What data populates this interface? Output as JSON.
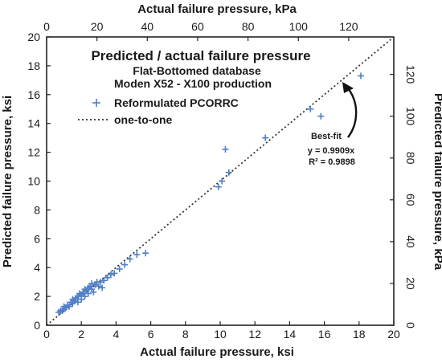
{
  "chart_data": {
    "type": "scatter",
    "title": "Predicted / actual failure pressure",
    "subtitle_lines": [
      "Flat-Bottomed database",
      "Moden X52 - X100 production"
    ],
    "xlabel": "Actual failure pressure, ksi",
    "ylabel": "Predicted failure pressure, ksi",
    "xlabel_top": "Actual failure pressure, kPa",
    "ylabel_right": "Predicted failure pressure, kPa",
    "xlim": [
      0,
      20
    ],
    "ylim": [
      0,
      20
    ],
    "xlim_top": [
      0,
      137.9
    ],
    "ylim_right": [
      0,
      137.9
    ],
    "x_ticks": [
      "0",
      "2",
      "4",
      "6",
      "8",
      "10",
      "12",
      "14",
      "16",
      "18",
      "20"
    ],
    "y_ticks": [
      "0",
      "2",
      "4",
      "6",
      "8",
      "10",
      "12",
      "14",
      "16",
      "18",
      "20"
    ],
    "x_ticks_top": [
      "0",
      "20",
      "40",
      "60",
      "80",
      "100",
      "120"
    ],
    "y_ticks_right": [
      "0",
      "20",
      "40",
      "60",
      "80",
      "100",
      "120"
    ],
    "grid": false,
    "legend_position": "top-left",
    "series": [
      {
        "name": "Reformulated PCORRC",
        "marker": "plus",
        "color": "#4f7fc8",
        "points": [
          {
            "x": 0.7,
            "y": 0.9
          },
          {
            "x": 0.8,
            "y": 1.0
          },
          {
            "x": 0.9,
            "y": 1.0
          },
          {
            "x": 1.0,
            "y": 1.1
          },
          {
            "x": 1.0,
            "y": 1.3
          },
          {
            "x": 1.1,
            "y": 1.2
          },
          {
            "x": 1.2,
            "y": 1.4
          },
          {
            "x": 1.3,
            "y": 1.3
          },
          {
            "x": 1.4,
            "y": 1.6
          },
          {
            "x": 1.5,
            "y": 1.5
          },
          {
            "x": 1.5,
            "y": 1.8
          },
          {
            "x": 1.6,
            "y": 1.7
          },
          {
            "x": 1.7,
            "y": 1.9
          },
          {
            "x": 1.8,
            "y": 2.0
          },
          {
            "x": 1.8,
            "y": 1.6
          },
          {
            "x": 1.9,
            "y": 2.2
          },
          {
            "x": 2.0,
            "y": 2.1
          },
          {
            "x": 2.0,
            "y": 1.8
          },
          {
            "x": 2.1,
            "y": 2.3
          },
          {
            "x": 2.2,
            "y": 2.5
          },
          {
            "x": 2.2,
            "y": 2.0
          },
          {
            "x": 2.3,
            "y": 2.4
          },
          {
            "x": 2.4,
            "y": 2.6
          },
          {
            "x": 2.4,
            "y": 2.2
          },
          {
            "x": 2.5,
            "y": 2.7
          },
          {
            "x": 2.6,
            "y": 2.5
          },
          {
            "x": 2.6,
            "y": 2.9
          },
          {
            "x": 2.7,
            "y": 2.3
          },
          {
            "x": 2.8,
            "y": 2.8
          },
          {
            "x": 2.9,
            "y": 3.0
          },
          {
            "x": 3.0,
            "y": 2.7
          },
          {
            "x": 3.1,
            "y": 3.0
          },
          {
            "x": 3.2,
            "y": 2.6
          },
          {
            "x": 3.3,
            "y": 3.1
          },
          {
            "x": 3.5,
            "y": 3.3
          },
          {
            "x": 3.7,
            "y": 3.5
          },
          {
            "x": 3.9,
            "y": 3.6
          },
          {
            "x": 4.2,
            "y": 3.9
          },
          {
            "x": 4.5,
            "y": 4.2
          },
          {
            "x": 4.8,
            "y": 4.6
          },
          {
            "x": 5.2,
            "y": 4.9
          },
          {
            "x": 5.7,
            "y": 5.0
          },
          {
            "x": 9.9,
            "y": 9.6
          },
          {
            "x": 10.1,
            "y": 10.0
          },
          {
            "x": 10.3,
            "y": 12.2
          },
          {
            "x": 10.5,
            "y": 10.6
          },
          {
            "x": 12.6,
            "y": 13.0
          },
          {
            "x": 15.2,
            "y": 15.0
          },
          {
            "x": 15.8,
            "y": 14.5
          },
          {
            "x": 18.1,
            "y": 17.3
          }
        ]
      },
      {
        "name": "one-to-one",
        "line_style": "dotted",
        "color": "#333333",
        "x": [
          0,
          20
        ],
        "y": [
          0,
          20
        ]
      }
    ],
    "annotation": {
      "lines": [
        "Best-fit",
        "y = 0.9909x",
        "R² = 0.9898"
      ]
    }
  }
}
